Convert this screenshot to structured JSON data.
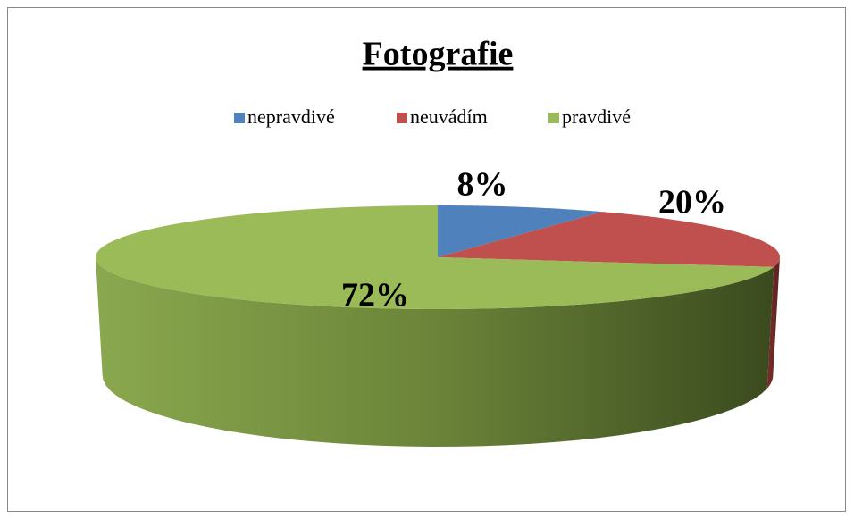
{
  "chart_data": {
    "type": "pie3d",
    "title": "Fotografie",
    "categories": [
      "nepravdivé",
      "neuvádím",
      "pravdivé"
    ],
    "values": [
      8,
      20,
      72
    ],
    "value_labels": [
      "8%",
      "20%",
      "72%"
    ],
    "colors": [
      "#4f81bd",
      "#c0504d",
      "#9bbb59"
    ],
    "legend": "top"
  }
}
